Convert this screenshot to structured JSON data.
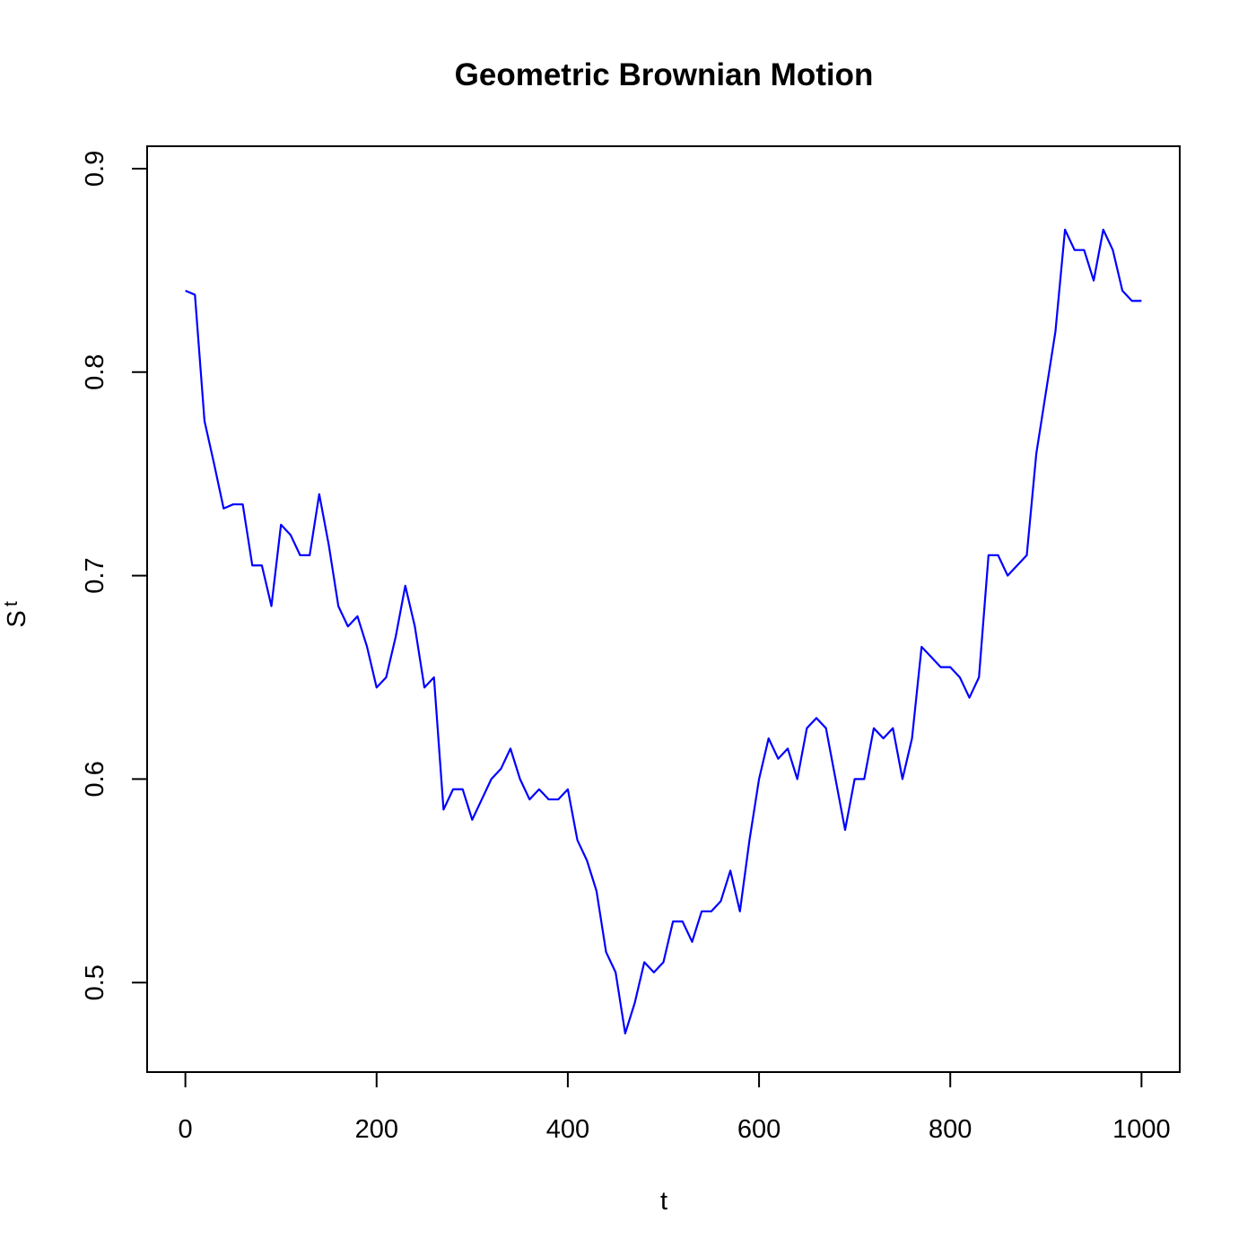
{
  "chart_data": {
    "type": "line",
    "title": "Geometric Brownian Motion",
    "x_label": "t",
    "y_label": "S",
    "y_label_subscript": "t",
    "x": [
      0,
      10,
      20,
      30,
      40,
      50,
      60,
      70,
      80,
      90,
      100,
      110,
      120,
      130,
      140,
      150,
      160,
      170,
      180,
      190,
      200,
      210,
      220,
      230,
      240,
      250,
      260,
      270,
      280,
      290,
      300,
      310,
      320,
      330,
      340,
      350,
      360,
      370,
      380,
      390,
      400,
      410,
      420,
      430,
      440,
      450,
      460,
      470,
      480,
      490,
      500,
      510,
      520,
      530,
      540,
      550,
      560,
      570,
      580,
      590,
      600,
      610,
      620,
      630,
      640,
      650,
      660,
      670,
      680,
      690,
      700,
      710,
      720,
      730,
      740,
      750,
      760,
      770,
      780,
      790,
      800,
      810,
      820,
      830,
      840,
      850,
      860,
      870,
      880,
      890,
      900,
      910,
      920,
      930,
      940,
      950,
      960,
      970,
      980,
      990,
      1000
    ],
    "series": [
      {
        "color": "#0000ff",
        "values": [
          0.84,
          0.838,
          0.776,
          0.755,
          0.733,
          0.735,
          0.735,
          0.705,
          0.705,
          0.685,
          0.725,
          0.72,
          0.71,
          0.71,
          0.74,
          0.715,
          0.685,
          0.675,
          0.68,
          0.665,
          0.645,
          0.65,
          0.67,
          0.695,
          0.675,
          0.645,
          0.65,
          0.585,
          0.595,
          0.595,
          0.58,
          0.59,
          0.6,
          0.605,
          0.615,
          0.6,
          0.59,
          0.595,
          0.59,
          0.59,
          0.595,
          0.57,
          0.56,
          0.545,
          0.515,
          0.505,
          0.475,
          0.49,
          0.51,
          0.505,
          0.51,
          0.53,
          0.53,
          0.52,
          0.535,
          0.535,
          0.54,
          0.555,
          0.535,
          0.57,
          0.6,
          0.62,
          0.61,
          0.615,
          0.6,
          0.625,
          0.63,
          0.625,
          0.6,
          0.575,
          0.6,
          0.6,
          0.625,
          0.62,
          0.625,
          0.6,
          0.62,
          0.665,
          0.66,
          0.655,
          0.655,
          0.65,
          0.64,
          0.65,
          0.71,
          0.71,
          0.7,
          0.705,
          0.71,
          0.76,
          0.79,
          0.82,
          0.87,
          0.86,
          0.86,
          0.845,
          0.87,
          0.86,
          0.84,
          0.835,
          0.835
        ]
      }
    ],
    "xlim": [
      -40,
      1040
    ],
    "ylim": [
      0.456,
      0.911
    ],
    "xticks": [
      0,
      200,
      400,
      600,
      800,
      1000
    ],
    "yticks": [
      0.5,
      0.6,
      0.7,
      0.8,
      0.9
    ]
  }
}
